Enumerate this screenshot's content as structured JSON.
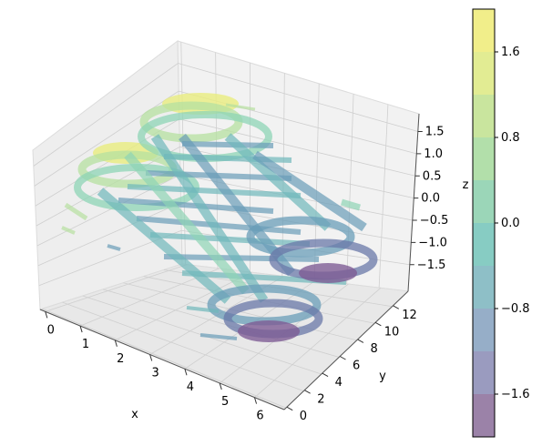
{
  "chart_data": {
    "type": "3d-filled-contour",
    "xlabel": "x",
    "ylabel": "y",
    "zlabel": "z",
    "xlim": [
      0,
      6.28
    ],
    "ylim": [
      0,
      12.57
    ],
    "zlim": [
      -1.9,
      1.9
    ],
    "x_ticks": [
      "0",
      "1",
      "2",
      "3",
      "4",
      "5",
      "6"
    ],
    "y_ticks": [
      "0",
      "2",
      "4",
      "6",
      "8",
      "10",
      "12"
    ],
    "z_ticks": [
      "1.5",
      "1.0",
      "0.5",
      "0.0",
      "−0.5",
      "−1.0",
      "−1.5"
    ],
    "grid": true,
    "colormap": "viridis",
    "alpha": 0.5,
    "colorbar": {
      "levels": [
        -2.0,
        -1.6,
        -1.2,
        -0.8,
        -0.4,
        0.0,
        0.4,
        0.8,
        1.2,
        1.6,
        2.0
      ],
      "colors": [
        "#9b82a8",
        "#9a9bbf",
        "#96aec8",
        "#8ebfc7",
        "#87ccc3",
        "#9bd6b8",
        "#b2dfaa",
        "#c9e59e",
        "#e2ec93",
        "#f1ee8a"
      ],
      "tick_labels": [
        "1.6",
        "0.8",
        "0.0",
        "−0.8",
        "−1.6"
      ]
    },
    "level_colors": {
      "high": "#e8ec7e",
      "upper": "#b6e0a0",
      "mid_high": "#8ed4b5",
      "mid": "#6fb8bb",
      "mid_low": "#6a9db8",
      "low": "#6a78a8",
      "lowest": "#7e5d95"
    }
  }
}
